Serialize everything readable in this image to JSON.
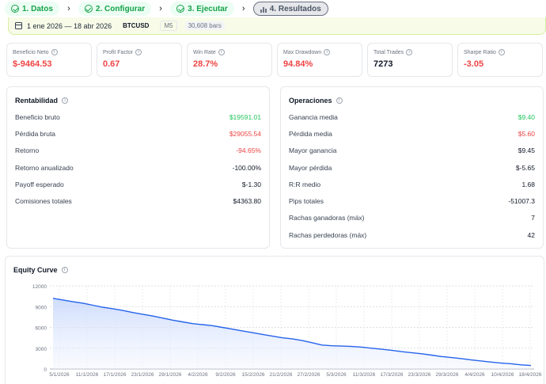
{
  "stepper": [
    {
      "label": "1. Datos",
      "state": "done"
    },
    {
      "label": "2. Configurar",
      "state": "done"
    },
    {
      "label": "3. Ejecutar",
      "state": "done"
    },
    {
      "label": "4. Resultados",
      "state": "active"
    }
  ],
  "banner": {
    "date_range": "1 ene 2026 — 18 abr 2026",
    "symbol": "BTCUSD",
    "timeframe": "M5",
    "bars": "30,608 bars"
  },
  "metrics": [
    {
      "label": "Beneficio Neto",
      "value": "$-9464.53"
    },
    {
      "label": "Profit Factor",
      "value": "0.67"
    },
    {
      "label": "Win Rate",
      "value": "28.7%"
    },
    {
      "label": "Max Drawdown",
      "value": "94.84%"
    },
    {
      "label": "Total Trades",
      "value": "7273"
    },
    {
      "label": "Sharpe Ratio",
      "value": "-3.05"
    }
  ],
  "rentabilidad": {
    "title": "Rentabilidad",
    "rows": [
      {
        "k": "Beneficio bruto",
        "v": "$19591.01"
      },
      {
        "k": "Pérdida bruta",
        "v": "$29055.54"
      },
      {
        "k": "Retorno",
        "v": "-94.65%"
      },
      {
        "k": "Retorno anualizado",
        "v": "-100.00%"
      },
      {
        "k": "Payoff esperado",
        "v": "$-1.30"
      },
      {
        "k": "Comisiones totales",
        "v": "$4363.80"
      }
    ]
  },
  "operaciones": {
    "title": "Operaciones",
    "rows": [
      {
        "k": "Ganancia media",
        "v": "$9.40"
      },
      {
        "k": "Pérdida media",
        "v": "$5.60"
      },
      {
        "k": "Mayor ganancia",
        "v": "$9.45"
      },
      {
        "k": "Mayor pérdida",
        "v": "$-5.65"
      },
      {
        "k": "R:R medio",
        "v": "1.68"
      },
      {
        "k": "Pips totales",
        "v": "-51007.3"
      },
      {
        "k": "Rachas ganadoras (máx)",
        "v": "7"
      },
      {
        "k": "Rachas perdedoras (máx)",
        "v": "42"
      }
    ]
  },
  "colors": {
    "positive": "#22c55e",
    "negative": "#ef4444",
    "line": "#2563eb"
  },
  "chart_data": {
    "type": "area",
    "title": "Equity Curve",
    "ylim": [
      0,
      12000
    ],
    "yticks": [
      0,
      3000,
      6000,
      9000,
      12000
    ],
    "xticks": [
      "5/1/2026",
      "11/1/2026",
      "17/1/2026",
      "23/1/2026",
      "29/1/2026",
      "4/2/2026",
      "9/2/2026",
      "15/2/2026",
      "21/2/2026",
      "27/2/2026",
      "5/3/2026",
      "11/3/2026",
      "17/3/2026",
      "23/3/2026",
      "29/3/2026",
      "4/4/2026",
      "10/4/2026",
      "18/4/2026"
    ],
    "grid": true,
    "series": [
      {
        "values": [
          10200,
          9950,
          9700,
          9500,
          9200,
          8900,
          8700,
          8450,
          8150,
          7900,
          7650,
          7350,
          7050,
          6800,
          6550,
          6400,
          6250,
          6000,
          5750,
          5500,
          5250,
          5000,
          4750,
          4500,
          4350,
          4100,
          3800,
          3450,
          3350,
          3300,
          3250,
          3150,
          3000,
          2850,
          2700,
          2500,
          2350,
          2200,
          2000,
          1800,
          1650,
          1500,
          1300,
          1150,
          1000,
          850,
          750,
          600,
          500
        ]
      }
    ]
  }
}
